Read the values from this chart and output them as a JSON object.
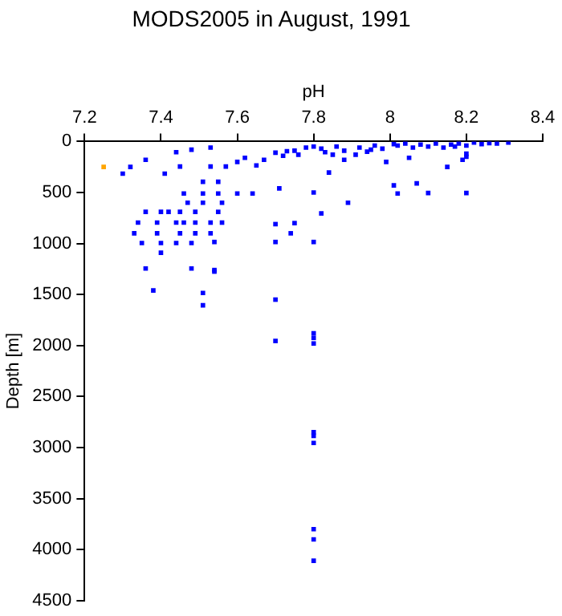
{
  "chart_data": {
    "type": "scatter",
    "title": "MODS2005 in August, 1991",
    "xlabel": "pH",
    "ylabel": "Depth [m]",
    "xlim": [
      7.2,
      8.4
    ],
    "xticks": [
      7.2,
      7.4,
      7.6,
      7.8,
      8,
      8.2,
      8.4
    ],
    "ylim": [
      4500,
      0
    ],
    "yticks": [
      0,
      500,
      1000,
      1500,
      2000,
      2500,
      3000,
      3500,
      4000,
      4500
    ],
    "marker": "square",
    "grid": false,
    "legend": false,
    "series": [
      {
        "color": "#0000ff",
        "x": [
          7.3,
          7.32,
          7.36,
          7.41,
          7.44,
          7.45,
          7.48,
          7.53,
          7.53,
          7.57,
          7.6,
          7.62,
          7.65,
          7.67,
          7.73,
          7.76,
          7.8,
          7.83,
          7.86,
          7.84,
          7.88,
          7.91,
          7.95,
          7.99,
          8.01,
          8.05,
          8.1,
          8.15,
          8.17,
          8.19,
          8.24,
          8.31,
          7.51,
          7.55,
          7.46,
          7.51,
          7.55,
          7.6,
          7.64,
          7.71,
          7.8,
          8.01,
          8.02,
          8.07,
          8.1,
          8.2,
          7.47,
          7.51,
          7.56,
          7.89,
          7.36,
          7.4,
          7.42,
          7.45,
          7.49,
          7.55,
          7.82,
          7.34,
          7.39,
          7.44,
          7.46,
          7.49,
          7.53,
          7.56,
          7.7,
          7.75,
          7.33,
          7.39,
          7.45,
          7.49,
          7.53,
          7.74,
          7.35,
          7.4,
          7.44,
          7.48,
          7.54,
          7.7,
          7.8,
          7.4,
          7.36,
          7.48,
          7.54,
          7.7,
          7.72,
          7.75,
          7.78,
          7.82,
          7.88,
          7.92,
          7.96,
          7.98,
          8.02,
          8.04,
          8.06,
          8.08,
          8.12,
          8.14,
          8.16,
          8.18,
          8.2,
          8.22,
          8.26,
          8.28,
          8.2,
          8.2,
          7.94,
          7.85,
          7.38,
          7.51,
          7.51,
          7.54,
          7.7,
          7.7,
          7.8,
          7.8,
          7.8,
          7.8,
          7.8,
          7.8,
          7.8,
          7.8,
          7.8
        ],
        "values": [
          315,
          250,
          180,
          315,
          105,
          245,
          80,
          60,
          245,
          245,
          200,
          160,
          235,
          180,
          95,
          130,
          50,
          105,
          50,
          305,
          180,
          130,
          80,
          200,
          25,
          160,
          50,
          250,
          50,
          180,
          25,
          10,
          395,
          395,
          510,
          510,
          510,
          510,
          510,
          460,
          500,
          430,
          510,
          410,
          505,
          505,
          600,
          600,
          600,
          600,
          690,
          690,
          690,
          690,
          690,
          690,
          705,
          795,
          795,
          795,
          795,
          795,
          795,
          795,
          810,
          800,
          900,
          900,
          900,
          900,
          900,
          900,
          995,
          995,
          995,
          995,
          985,
          985,
          985,
          1090,
          1245,
          1245,
          1260,
          110,
          140,
          90,
          60,
          70,
          90,
          60,
          40,
          70,
          40,
          20,
          60,
          30,
          20,
          60,
          30,
          20,
          40,
          10,
          15,
          20,
          120,
          150,
          100,
          130,
          1460,
          1485,
          1605,
          1275,
          1550,
          1955,
          1880,
          1925,
          1980,
          2850,
          2885,
          2955,
          3800,
          3900,
          4110
        ]
      },
      {
        "color": "#ffa500",
        "x": [
          7.25
        ],
        "values": [
          250
        ]
      }
    ]
  }
}
